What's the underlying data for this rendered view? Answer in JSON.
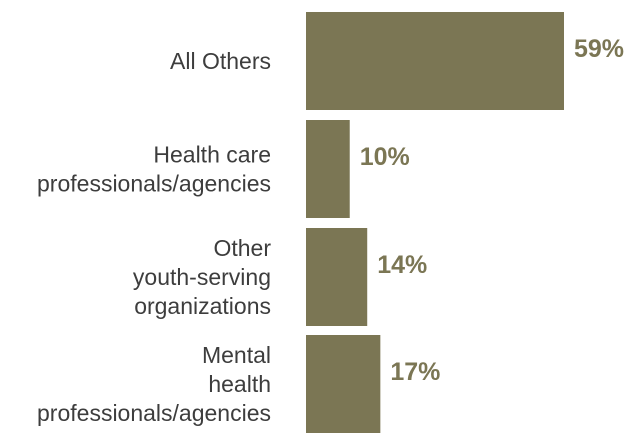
{
  "chart_data": {
    "type": "bar",
    "orientation": "horizontal",
    "categories": [
      [
        "All Others"
      ],
      [
        "Health care",
        "professionals/agencies"
      ],
      [
        "Other",
        "youth-serving",
        "organizations"
      ],
      [
        "Mental",
        "health",
        "professionals/agencies"
      ]
    ],
    "values": [
      59,
      10,
      14,
      17
    ],
    "value_labels": [
      "59%",
      "10%",
      "14%",
      "17%"
    ],
    "title": "",
    "xlabel": "",
    "ylabel": "",
    "xlim": [
      0,
      59
    ],
    "grid": false,
    "legend": "none",
    "colors": {
      "bar": "#7b7654",
      "value_text": "#7b7654",
      "label_text": "#3d3d3d"
    }
  }
}
